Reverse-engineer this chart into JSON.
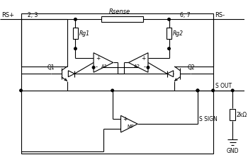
{
  "bg_color": "#ffffff",
  "line_color": "#000000",
  "labels": {
    "RS_plus": "RS+",
    "RS_minus": "RS-",
    "pin_23": "2, 3",
    "pin_67": "6, 7",
    "Rsense": "Rsense",
    "Rg1": "Rg1",
    "Rg2": "Rg2",
    "A1": "A1",
    "A2": "A2",
    "Q1": "Q1",
    "Q2": "Q2",
    "MF": "MF",
    "S_OUT": "S OUT",
    "S_SIGN": "S SIGN",
    "GND": "GND",
    "R2k": "2kΩ"
  }
}
